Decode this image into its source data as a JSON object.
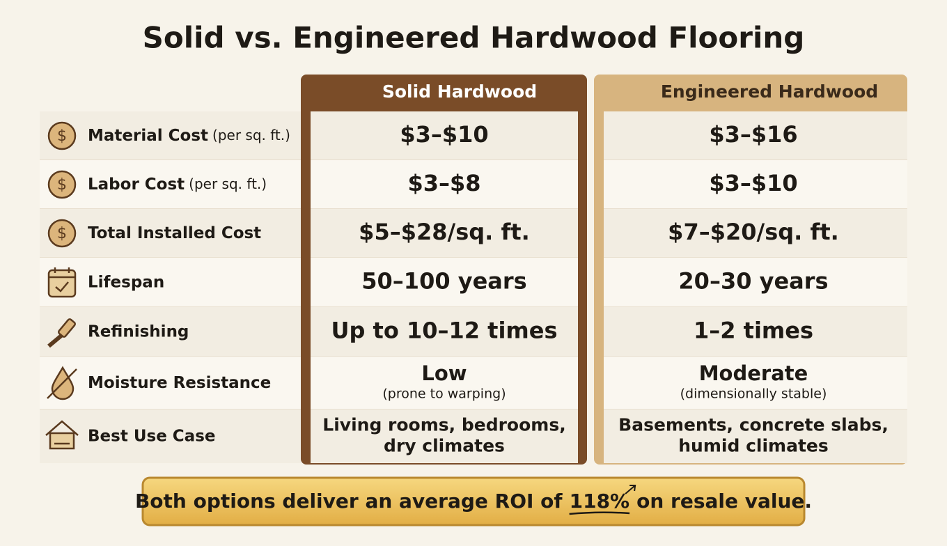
{
  "title": "Solid vs. Engineered Hardwood Flooring",
  "columns": [
    "Solid Hardwood",
    "Engineered Hardwood"
  ],
  "rows": [
    {
      "label": "Material Cost",
      "qualifier": "(per sq. ft.)",
      "solid": "$3–$10",
      "engineered": "$3–$16"
    },
    {
      "label": "Labor Cost",
      "qualifier": "(per sq. ft.)",
      "solid": "$3–$8",
      "engineered": "$3–$10"
    },
    {
      "label": "Total Installed Cost",
      "solid": "$5–$28/sq. ft.",
      "engineered": "$7–$20/sq. ft."
    },
    {
      "label": "Lifespan",
      "solid": "50–100 years",
      "engineered": "20–30 years"
    },
    {
      "label": "Refinishing",
      "solid": "Up to 10–12 times",
      "engineered": "1–2 times"
    },
    {
      "label": "Moisture Resistance",
      "solid": "Low",
      "solid_note": "(prone to warping)",
      "engineered": "Moderate",
      "engineered_note": "(dimensionally stable)"
    },
    {
      "label": "Best Use Case",
      "solid": [
        "Living rooms, bedrooms,",
        "dry climates"
      ],
      "engineered": [
        "Basements, concrete slabs,",
        "humid climates"
      ]
    }
  ],
  "footer": {
    "before": "Both options deliver an average ROI of",
    "highlight": "118%",
    "after": "on resale value."
  }
}
